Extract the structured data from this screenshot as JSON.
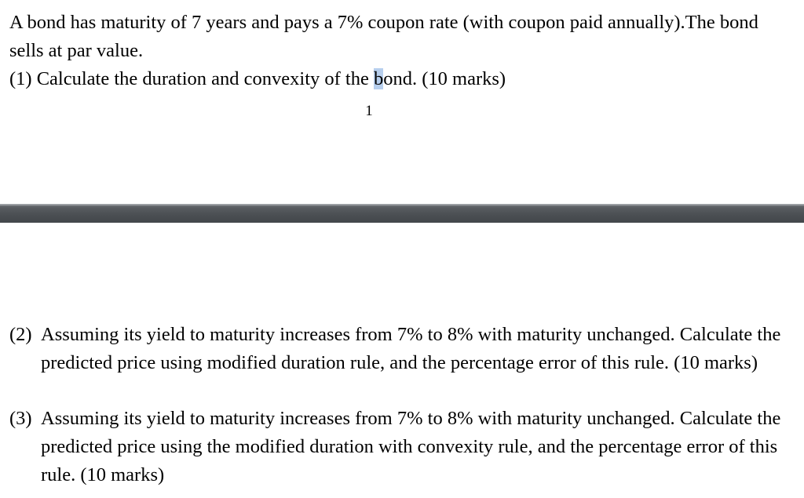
{
  "page1": {
    "intro": "A bond has maturity of 7 years and pays a 7% coupon rate (with coupon paid annually).The bond sells at par value.",
    "q1_before": "(1) Calculate the duration and convexity of the ",
    "q1_highlight": "b",
    "q1_after": "ond. (10 marks)",
    "page_number": "1"
  },
  "page2": {
    "q2_num": "(2)",
    "q2_text": "Assuming its yield to maturity increases from 7% to 8% with maturity unchanged. Calculate the predicted price using modified duration rule, and the percentage error of this rule. (10 marks)",
    "q3_num": "(3)",
    "q3_text": "Assuming its yield to maturity increases from 7% to 8% with maturity unchanged. Calculate the predicted price using the modified duration with convexity rule, and the percentage error of this rule. (10 marks)"
  },
  "colors": {
    "selection_highlight": "#b7cfee",
    "page_separator": "#4b4f53"
  }
}
